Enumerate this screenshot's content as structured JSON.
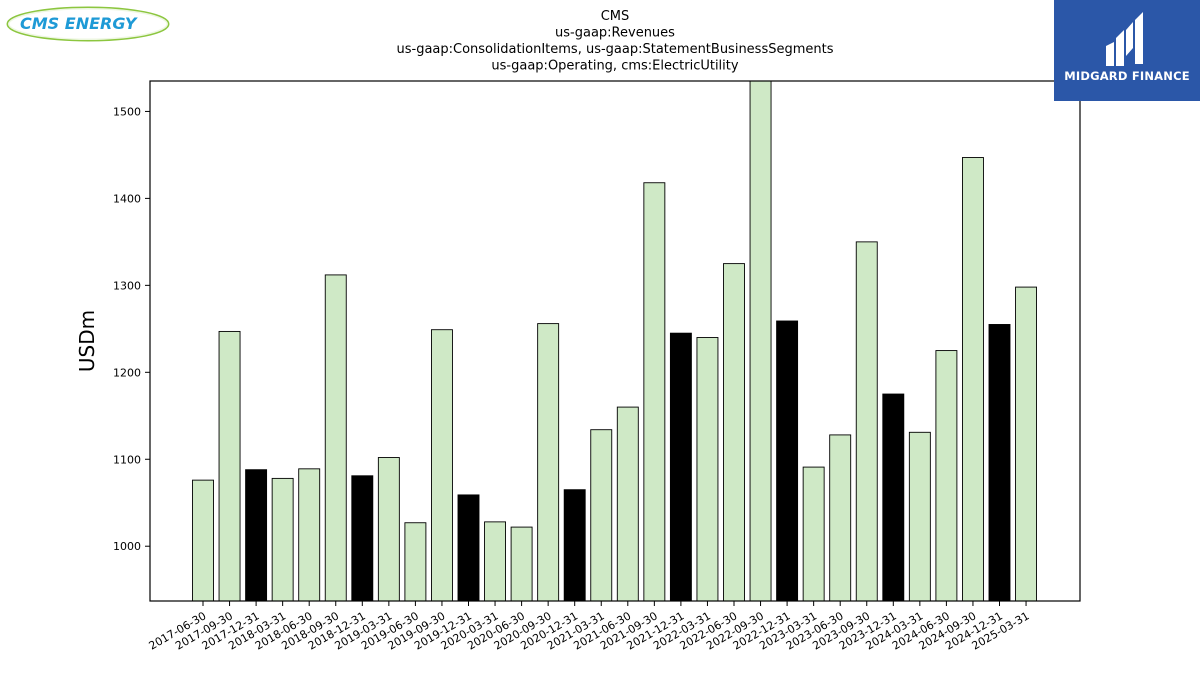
{
  "logos": {
    "left": "CMS ENERGY",
    "right": "MIDGARD FINANCE"
  },
  "colors": {
    "bar_fill": "#cfe9c6",
    "bar_highlight": "#000000",
    "brand_blue": "#2b57a8",
    "cms_blue": "#1e9ad6",
    "cms_green": "#8cc63f"
  },
  "chart_data": {
    "type": "bar",
    "title_lines": [
      "CMS",
      "us-gaap:Revenues",
      "us-gaap:ConsolidationItems, us-gaap:StatementBusinessSegments",
      "us-gaap:Operating, cms:ElectricUtility"
    ],
    "ylabel": "USDm",
    "xlabel": "",
    "ylim": [
      937,
      1535
    ],
    "yticks": [
      1000,
      1100,
      1200,
      1300,
      1400,
      1500
    ],
    "grid": false,
    "categories": [
      "2017-06-30",
      "2017-09-30",
      "2017-12-31",
      "2018-03-31",
      "2018-06-30",
      "2018-09-30",
      "2018-12-31",
      "2019-03-31",
      "2019-06-30",
      "2019-09-30",
      "2019-12-31",
      "2020-03-31",
      "2020-06-30",
      "2020-09-30",
      "2020-12-31",
      "2021-03-31",
      "2021-06-30",
      "2021-09-30",
      "2021-12-31",
      "2022-03-31",
      "2022-06-30",
      "2022-09-30",
      "2022-12-31",
      "2023-03-31",
      "2023-06-30",
      "2023-09-30",
      "2023-12-31",
      "2024-03-31",
      "2024-06-30",
      "2024-09-30",
      "2024-12-31",
      "2025-03-31"
    ],
    "values": [
      1076,
      1247,
      1088,
      1078,
      1089,
      1312,
      1081,
      1102,
      1027,
      1249,
      1059,
      1028,
      1022,
      1256,
      1065,
      1134,
      1160,
      1418,
      1245,
      1240,
      1325,
      1535,
      1259,
      1091,
      1128,
      1350,
      1175,
      1131,
      1225,
      1447,
      1255,
      1298
    ],
    "highlighted": [
      false,
      false,
      true,
      false,
      false,
      false,
      true,
      false,
      false,
      false,
      true,
      false,
      false,
      false,
      true,
      false,
      false,
      false,
      true,
      false,
      false,
      false,
      true,
      false,
      false,
      false,
      true,
      false,
      false,
      false,
      true,
      false
    ]
  }
}
